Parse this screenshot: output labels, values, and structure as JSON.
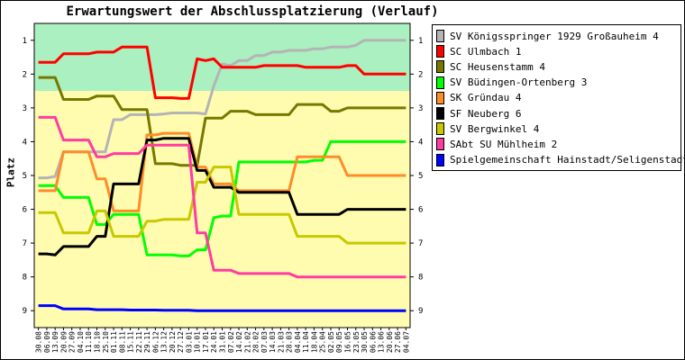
{
  "chart_data": {
    "type": "line",
    "title": "Erwartungswert der Abschlussplatzierung (Verlauf)",
    "ylabel": "Platz",
    "xlabel": "",
    "ylim": [
      0.5,
      9.5
    ],
    "y_inverted": true,
    "yticks": [
      1,
      2,
      3,
      4,
      5,
      6,
      7,
      8,
      9
    ],
    "grid": false,
    "legend_position": "right",
    "background_bands": [
      {
        "from": 0.5,
        "to": 2.5,
        "color": "#aaf0c0"
      },
      {
        "from": 2.5,
        "to": 9.5,
        "color": "#fffcb0"
      }
    ],
    "x": [
      "30.08",
      "06.09",
      "13.09",
      "20.09",
      "27.09",
      "04.10",
      "11.10",
      "18.10",
      "25.10",
      "01.11",
      "08.11",
      "15.11",
      "22.11",
      "29.11",
      "06.12",
      "13.12",
      "20.12",
      "27.12",
      "03.01",
      "10.01",
      "17.01",
      "24.01",
      "31.01",
      "07.02",
      "14.02",
      "21.02",
      "28.02",
      "07.03",
      "14.03",
      "21.03",
      "28.03",
      "04.04",
      "11.04",
      "18.04",
      "25.04",
      "02.05",
      "09.05",
      "16.05",
      "23.05",
      "30.05",
      "06.06",
      "13.06",
      "20.06",
      "27.06",
      "04.07"
    ],
    "series": [
      {
        "name": "SV Königsspringer 1929 Großauheim 4",
        "color": "#b4b4b4",
        "values": [
          5.07,
          5.07,
          5.03,
          4.3,
          4.3,
          4.3,
          4.3,
          4.3,
          4.3,
          3.35,
          3.35,
          3.2,
          3.2,
          3.2,
          3.2,
          3.18,
          3.15,
          3.15,
          3.15,
          3.15,
          3.18,
          2.35,
          1.7,
          1.75,
          1.6,
          1.6,
          1.45,
          1.45,
          1.35,
          1.35,
          1.3,
          1.3,
          1.3,
          1.25,
          1.25,
          1.2,
          1.2,
          1.2,
          1.15,
          1.0,
          1.0,
          1.0,
          1.0,
          1.0,
          1.0
        ]
      },
      {
        "name": "SC Ulmbach 1",
        "color": "#ff0000",
        "values": [
          1.65,
          1.65,
          1.65,
          1.4,
          1.4,
          1.4,
          1.4,
          1.35,
          1.35,
          1.35,
          1.2,
          1.2,
          1.2,
          1.2,
          2.7,
          2.7,
          2.7,
          2.72,
          2.72,
          1.55,
          1.6,
          1.55,
          1.8,
          1.8,
          1.8,
          1.8,
          1.8,
          1.75,
          1.75,
          1.75,
          1.75,
          1.75,
          1.8,
          1.8,
          1.8,
          1.8,
          1.8,
          1.75,
          1.75,
          2.0,
          2.0,
          2.0,
          2.0,
          2.0,
          2.0
        ]
      },
      {
        "name": "SC Heusenstamm 4",
        "color": "#787800",
        "values": [
          2.1,
          2.1,
          2.1,
          2.75,
          2.75,
          2.75,
          2.75,
          2.65,
          2.65,
          2.65,
          3.05,
          3.05,
          3.05,
          3.05,
          4.65,
          4.65,
          4.65,
          4.7,
          4.7,
          4.7,
          3.3,
          3.3,
          3.3,
          3.1,
          3.1,
          3.1,
          3.2,
          3.2,
          3.2,
          3.2,
          3.2,
          2.9,
          2.9,
          2.9,
          2.9,
          3.1,
          3.1,
          3.0,
          3.0,
          3.0,
          3.0,
          3.0,
          3.0,
          3.0,
          3.0
        ]
      },
      {
        "name": "SV Büdingen-Ortenberg 3",
        "color": "#00ff00",
        "values": [
          5.3,
          5.3,
          5.3,
          5.65,
          5.65,
          5.65,
          5.65,
          6.45,
          6.45,
          6.15,
          6.15,
          6.15,
          6.15,
          7.35,
          7.35,
          7.35,
          7.35,
          7.38,
          7.38,
          7.2,
          7.2,
          6.25,
          6.2,
          6.2,
          4.6,
          4.6,
          4.6,
          4.6,
          4.6,
          4.6,
          4.6,
          4.6,
          4.6,
          4.55,
          4.55,
          4.0,
          4.0,
          4.0,
          4.0,
          4.0,
          4.0,
          4.0,
          4.0,
          4.0,
          4.0
        ]
      },
      {
        "name": "SK Gründau 4",
        "color": "#ff8c28",
        "values": [
          5.45,
          5.45,
          5.45,
          4.3,
          4.3,
          4.3,
          4.3,
          5.1,
          5.1,
          6.05,
          6.05,
          6.05,
          6.05,
          3.8,
          3.8,
          3.75,
          3.75,
          3.75,
          3.75,
          4.75,
          4.75,
          5.25,
          5.25,
          5.25,
          5.45,
          5.45,
          5.45,
          5.45,
          5.45,
          5.45,
          5.45,
          4.45,
          4.45,
          4.45,
          4.45,
          4.45,
          4.45,
          5.0,
          5.0,
          5.0,
          5.0,
          5.0,
          5.0,
          5.0,
          5.0
        ]
      },
      {
        "name": "SF Neuberg 6",
        "color": "#000000",
        "values": [
          7.32,
          7.32,
          7.35,
          7.1,
          7.1,
          7.1,
          7.1,
          6.8,
          6.8,
          5.25,
          5.25,
          5.25,
          5.25,
          3.95,
          3.95,
          3.9,
          3.9,
          3.9,
          3.9,
          4.85,
          4.85,
          5.35,
          5.35,
          5.35,
          5.5,
          5.5,
          5.5,
          5.5,
          5.5,
          5.5,
          5.5,
          6.15,
          6.15,
          6.15,
          6.15,
          6.15,
          6.15,
          6.0,
          6.0,
          6.0,
          6.0,
          6.0,
          6.0,
          6.0,
          6.0
        ]
      },
      {
        "name": "SV Bergwinkel 4",
        "color": "#c8c800",
        "values": [
          6.1,
          6.1,
          6.1,
          6.7,
          6.7,
          6.7,
          6.7,
          6.05,
          6.05,
          6.8,
          6.8,
          6.8,
          6.8,
          6.35,
          6.35,
          6.3,
          6.3,
          6.3,
          6.3,
          5.2,
          5.2,
          4.75,
          4.75,
          4.75,
          6.15,
          6.15,
          6.15,
          6.15,
          6.15,
          6.15,
          6.15,
          6.8,
          6.8,
          6.8,
          6.8,
          6.8,
          6.8,
          7.0,
          7.0,
          7.0,
          7.0,
          7.0,
          7.0,
          7.0,
          7.0
        ]
      },
      {
        "name": "SAbt SU Mühlheim 2",
        "color": "#ff3ca0",
        "values": [
          3.28,
          3.28,
          3.28,
          3.95,
          3.95,
          3.95,
          3.95,
          4.45,
          4.45,
          4.35,
          4.35,
          4.35,
          4.35,
          4.1,
          4.1,
          4.1,
          4.1,
          4.1,
          4.1,
          6.7,
          6.7,
          7.8,
          7.8,
          7.8,
          7.9,
          7.9,
          7.9,
          7.9,
          7.9,
          7.9,
          7.9,
          8.0,
          8.0,
          8.0,
          8.0,
          8.0,
          8.0,
          8.0,
          8.0,
          8.0,
          8.0,
          8.0,
          8.0,
          8.0,
          8.0
        ]
      },
      {
        "name": "Spielgemeinschaft Hainstadt/Seligenstadt 1",
        "color": "#0000ff",
        "values": [
          8.85,
          8.85,
          8.85,
          8.95,
          8.95,
          8.95,
          8.95,
          8.97,
          8.97,
          8.97,
          8.97,
          8.98,
          8.98,
          8.98,
          8.98,
          8.99,
          8.99,
          8.99,
          8.99,
          9.0,
          9.0,
          9.0,
          9.0,
          9.0,
          9.0,
          9.0,
          9.0,
          9.0,
          9.0,
          9.0,
          9.0,
          9.0,
          9.0,
          9.0,
          9.0,
          9.0,
          9.0,
          9.0,
          9.0,
          9.0,
          9.0,
          9.0,
          9.0,
          9.0,
          9.0
        ]
      }
    ]
  }
}
